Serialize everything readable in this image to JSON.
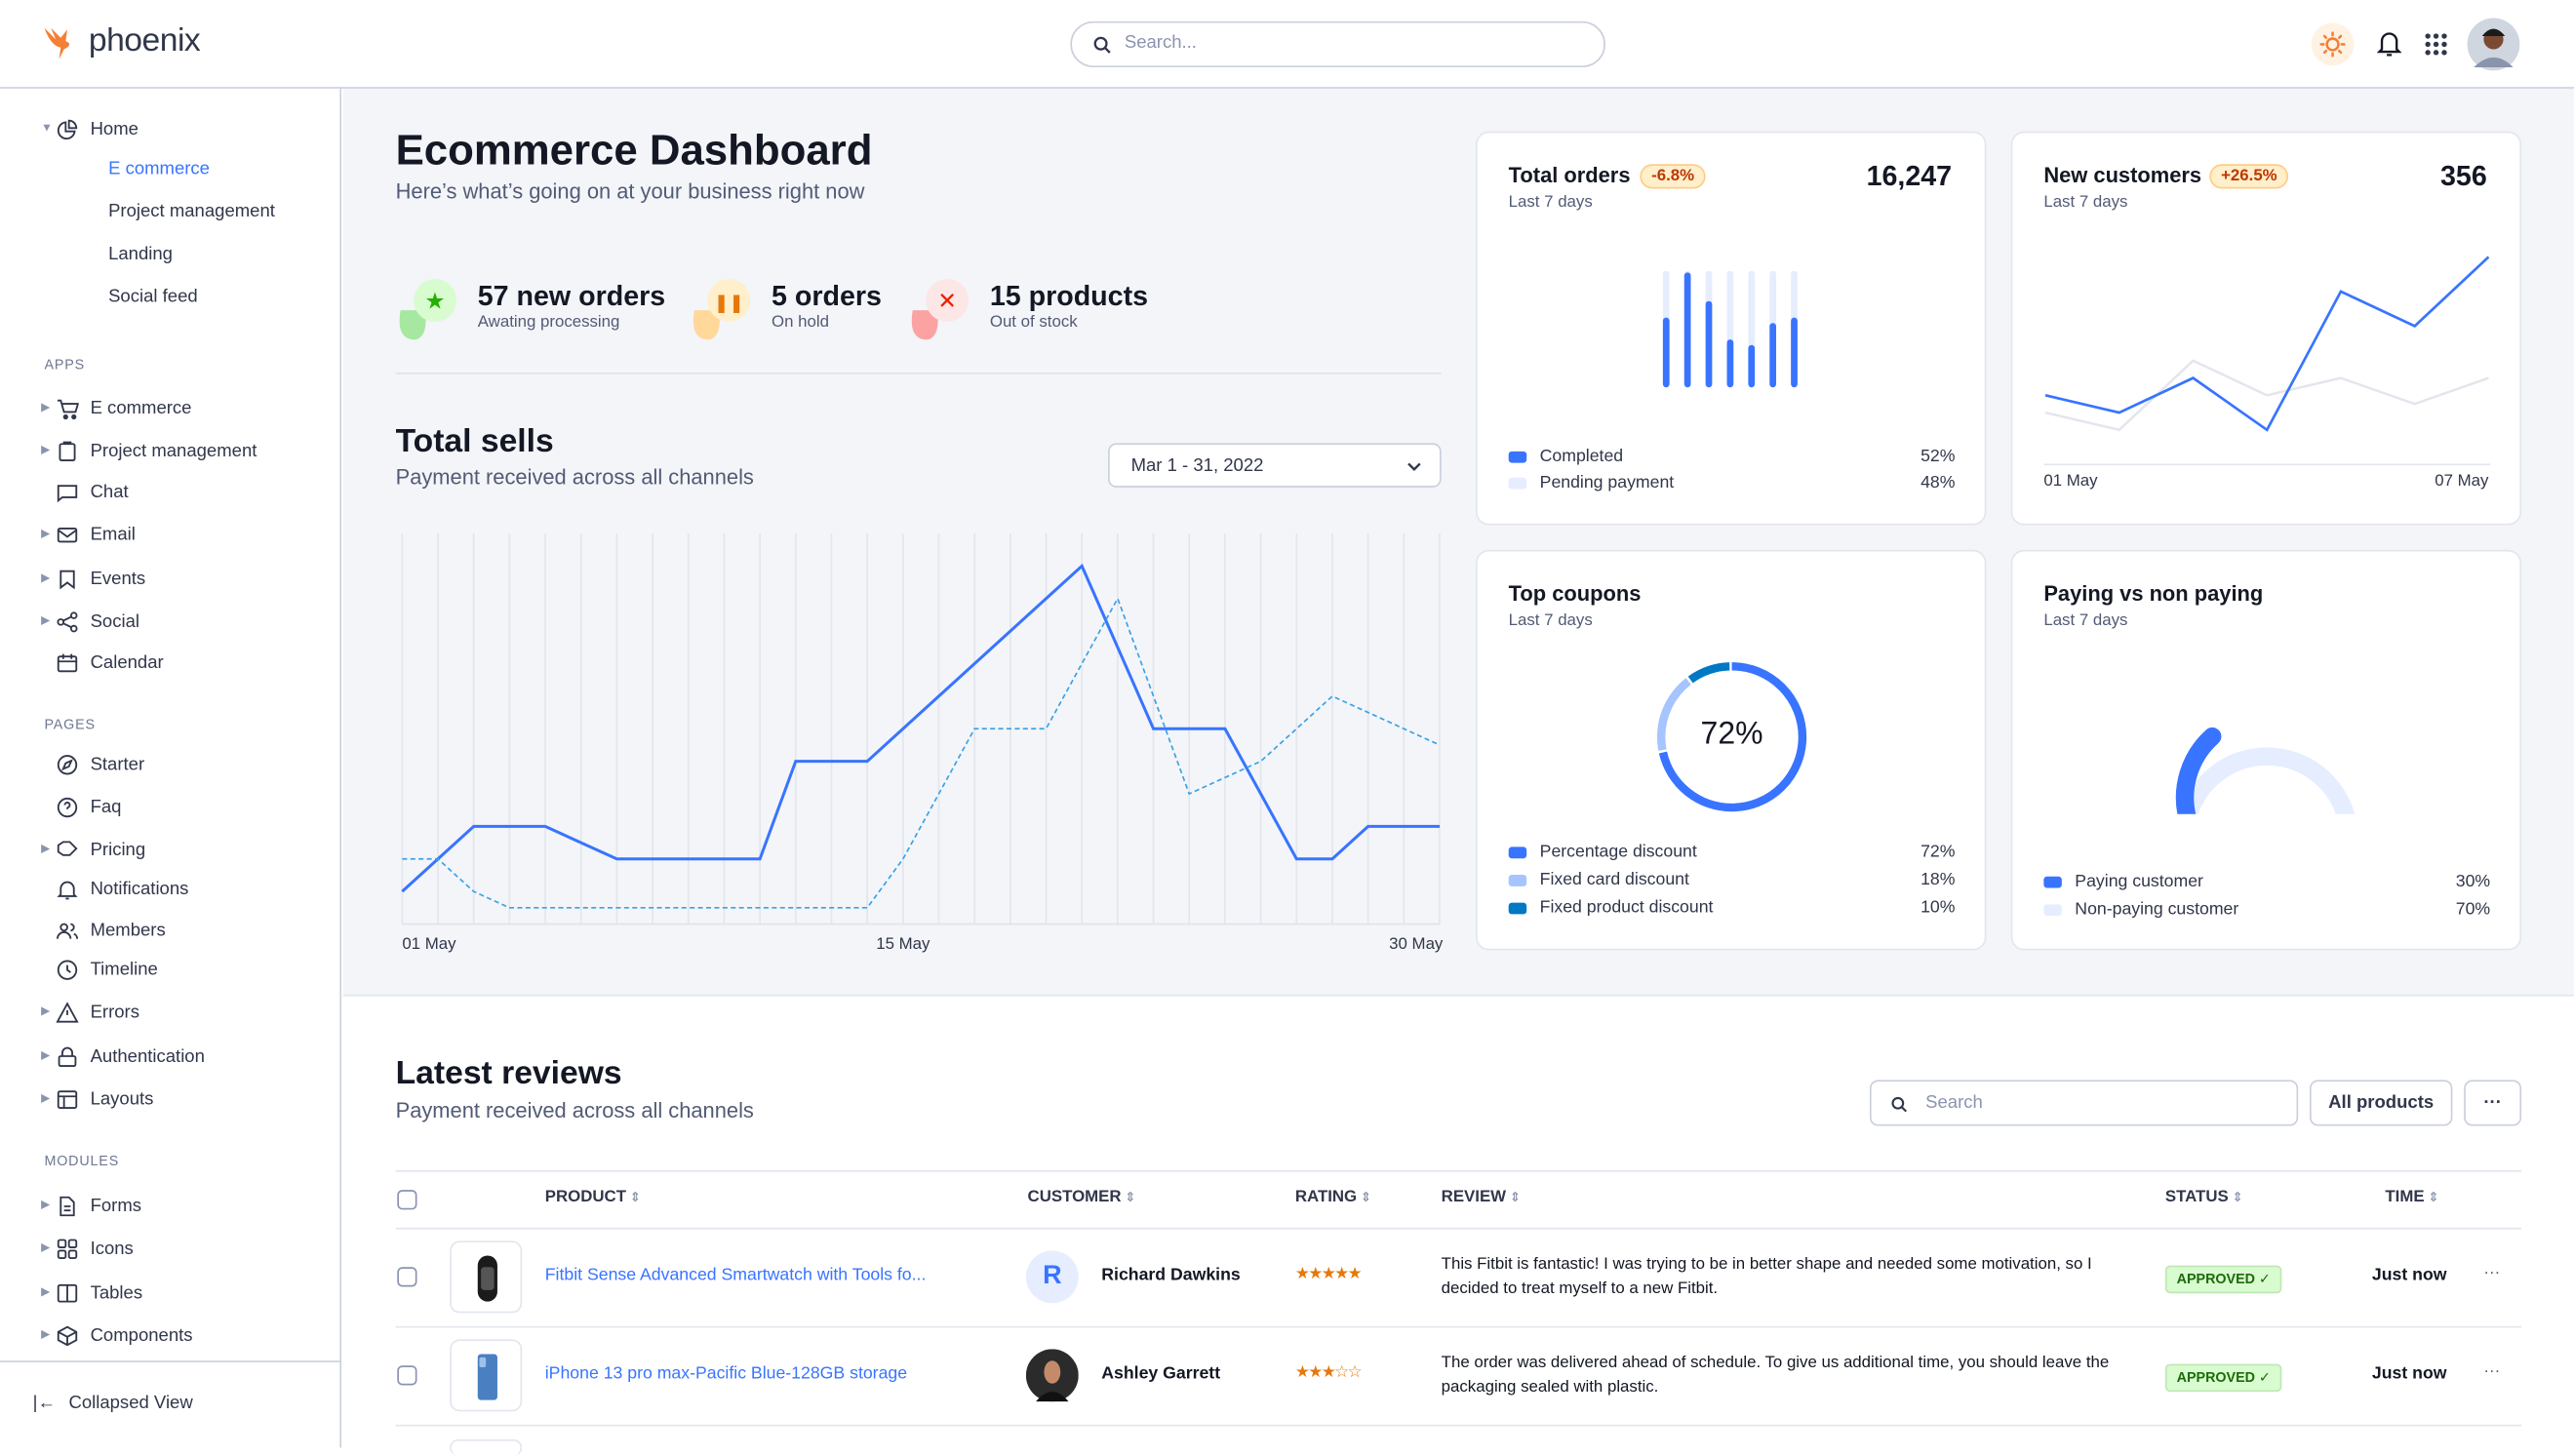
{
  "app": {
    "logo": "phoenix",
    "search_placeholder": "Search..."
  },
  "header_icons": [
    "sun-icon",
    "bell-icon",
    "apps-grid-icon",
    "avatar"
  ],
  "sidebar": {
    "home": {
      "label": "Home",
      "items": [
        "E commerce",
        "Project management",
        "Landing",
        "Social feed"
      ],
      "active": "E commerce"
    },
    "sections": [
      {
        "title": "APPS",
        "items": [
          {
            "label": "E commerce",
            "icon": "cart-icon",
            "caret": true
          },
          {
            "label": "Project management",
            "icon": "clipboard-icon",
            "caret": true
          },
          {
            "label": "Chat",
            "icon": "chat-icon",
            "caret": false
          },
          {
            "label": "Email",
            "icon": "mail-icon",
            "caret": true
          },
          {
            "label": "Events",
            "icon": "bookmark-icon",
            "caret": true
          },
          {
            "label": "Social",
            "icon": "share-icon",
            "caret": true
          },
          {
            "label": "Calendar",
            "icon": "calendar-icon",
            "caret": false
          }
        ]
      },
      {
        "title": "PAGES",
        "items": [
          {
            "label": "Starter",
            "icon": "compass-icon",
            "caret": false
          },
          {
            "label": "Faq",
            "icon": "help-circle-icon",
            "caret": false
          },
          {
            "label": "Pricing",
            "icon": "tag-icon",
            "caret": true
          },
          {
            "label": "Notifications",
            "icon": "bell-icon",
            "caret": false
          },
          {
            "label": "Members",
            "icon": "users-icon",
            "caret": false
          },
          {
            "label": "Timeline",
            "icon": "clock-icon",
            "caret": false
          },
          {
            "label": "Errors",
            "icon": "alert-triangle-icon",
            "caret": true
          },
          {
            "label": "Authentication",
            "icon": "lock-icon",
            "caret": true
          },
          {
            "label": "Layouts",
            "icon": "layout-icon",
            "caret": true
          }
        ]
      },
      {
        "title": "MODULES",
        "items": [
          {
            "label": "Forms",
            "icon": "file-text-icon",
            "caret": true
          },
          {
            "label": "Icons",
            "icon": "grid-icon",
            "caret": true
          },
          {
            "label": "Tables",
            "icon": "columns-icon",
            "caret": true
          },
          {
            "label": "Components",
            "icon": "package-icon",
            "caret": true
          }
        ]
      }
    ],
    "collapse_label": "Collapsed View"
  },
  "page": {
    "title": "Ecommerce Dashboard",
    "subtitle": "Here’s what’s going on at your business right now"
  },
  "stats": [
    {
      "value": "57 new orders",
      "label": "Awating processing",
      "icon": "star-icon",
      "color": "#25b003"
    },
    {
      "value": "5 orders",
      "label": "On hold",
      "icon": "pause-icon",
      "color": "#e5780b"
    },
    {
      "value": "15 products",
      "label": "Out of stock",
      "icon": "x-icon",
      "color": "#ec1f00"
    }
  ],
  "total_sells": {
    "title": "Total sells",
    "subtitle": "Payment received across all channels",
    "date_range": "Mar 1 - 31, 2022"
  },
  "chart_data": [
    {
      "type": "line",
      "title": "Total sells",
      "x_tick_labels": [
        "01 May",
        "15 May",
        "30 May"
      ],
      "x": [
        "01 May",
        "02 May",
        "03 May",
        "04 May",
        "05 May",
        "06 May",
        "07 May",
        "08 May",
        "09 May",
        "10 May",
        "11 May",
        "12 May",
        "13 May",
        "14 May",
        "15 May",
        "16 May",
        "17 May",
        "18 May",
        "19 May",
        "20 May",
        "21 May",
        "22 May",
        "23 May",
        "24 May",
        "25 May",
        "26 May",
        "27 May",
        "28 May",
        "29 May",
        "30 May"
      ],
      "ylim": [
        0,
        12
      ],
      "grid": "vertical",
      "series": [
        {
          "style": "solid",
          "color": "#3874ff",
          "values": [
            1,
            2,
            3,
            3,
            3,
            2.5,
            2,
            2,
            2,
            2,
            2,
            5,
            5,
            5,
            6,
            7,
            8,
            9,
            10,
            11,
            8.5,
            6,
            6,
            6,
            4,
            2,
            2,
            3,
            3,
            3
          ]
        },
        {
          "style": "dashed",
          "color": "#3ba2e6",
          "values": [
            2,
            2,
            1,
            0.5,
            0.5,
            0.5,
            0.5,
            0.5,
            0.5,
            0.5,
            0.5,
            0.5,
            0.5,
            0.5,
            2,
            4,
            6,
            6,
            6,
            8,
            10,
            7,
            4,
            4.5,
            5,
            6,
            7,
            6.5,
            6,
            5.5
          ]
        }
      ]
    },
    {
      "type": "bar",
      "title": "Total orders",
      "categories": [
        "1",
        "2",
        "3",
        "4",
        "5",
        "6",
        "7"
      ],
      "ylim": [
        0,
        100
      ],
      "series": [
        {
          "name": "Completed",
          "values": [
            59,
            100,
            74,
            39,
            34,
            54,
            59
          ]
        },
        {
          "name": "Pending payment",
          "values": [
            100,
            100,
            100,
            100,
            100,
            100,
            100
          ]
        }
      ]
    },
    {
      "type": "line",
      "title": "New customers",
      "x_tick_labels": [
        "01 May",
        "07 May"
      ],
      "ylim": [
        0,
        13
      ],
      "series": [
        {
          "color": "#3874ff",
          "values": [
            4,
            3,
            5,
            2,
            10,
            8,
            12
          ]
        },
        {
          "color": "#e3e6ed",
          "values": [
            3,
            2,
            6,
            4,
            5,
            3.5,
            5
          ]
        }
      ]
    },
    {
      "type": "pie",
      "title": "Top coupons",
      "center_label": "72%",
      "slices": [
        {
          "name": "Percentage discount",
          "value": 72,
          "color": "#3874ff"
        },
        {
          "name": "Fixed card discount",
          "value": 18,
          "color": "#a6c4ff"
        },
        {
          "name": "Fixed product discount",
          "value": 10,
          "color": "#0079c4"
        }
      ]
    },
    {
      "type": "pie",
      "title": "Paying vs non paying",
      "style": "gauge",
      "slices": [
        {
          "name": "Paying customer",
          "value": 30,
          "color": "#3874ff"
        },
        {
          "name": "Non-paying customer",
          "value": 70,
          "color": "#e5edff"
        }
      ]
    }
  ],
  "cards": {
    "orders": {
      "title": "Total orders",
      "badge": "-6.8%",
      "value": "16,247",
      "period": "Last 7 days",
      "legend": [
        {
          "label": "Completed",
          "pct": "52%",
          "color": "#3874ff"
        },
        {
          "label": "Pending payment",
          "pct": "48%",
          "color": "#e5edff"
        }
      ]
    },
    "customers": {
      "title": "New customers",
      "badge": "+26.5%",
      "value": "356",
      "period": "Last 7 days",
      "x_start": "01 May",
      "x_end": "07 May"
    },
    "coupons": {
      "title": "Top coupons",
      "period": "Last 7 days",
      "center": "72%",
      "legend": [
        {
          "label": "Percentage discount",
          "pct": "72%",
          "color": "#3874ff"
        },
        {
          "label": "Fixed card discount",
          "pct": "18%",
          "color": "#a6c4ff"
        },
        {
          "label": "Fixed product discount",
          "pct": "10%",
          "color": "#0079c4"
        }
      ]
    },
    "paying": {
      "title": "Paying vs non paying",
      "period": "Last 7 days",
      "legend": [
        {
          "label": "Paying customer",
          "pct": "30%",
          "color": "#3874ff"
        },
        {
          "label": "Non-paying customer",
          "pct": "70%",
          "color": "#e5edff"
        }
      ]
    }
  },
  "reviews": {
    "title": "Latest reviews",
    "subtitle": "Payment received across all channels",
    "search_placeholder": "Search",
    "filter_label": "All products",
    "more_label": "···",
    "columns": [
      "PRODUCT",
      "CUSTOMER",
      "RATING",
      "REVIEW",
      "STATUS",
      "TIME"
    ],
    "rows": [
      {
        "product": "Fitbit Sense Advanced Smartwatch with Tools fo...",
        "customer": "Richard Dawkins",
        "initial": "R",
        "rating": 5,
        "stars": "★★★★★",
        "review": "This Fitbit is fantastic! I was trying to be in better shape and needed some motivation, so I decided to treat myself to a new Fitbit.",
        "status": "APPROVED ✓",
        "time": "Just now"
      },
      {
        "product": "iPhone 13 pro max-Pacific Blue-128GB storage",
        "customer": "Ashley Garrett",
        "rating": 3,
        "stars": "★★★☆☆",
        "review": "The order was delivered ahead of schedule. To give us additional time, you should leave the packaging sealed with plastic.",
        "status": "APPROVED ✓",
        "time": "Just now"
      }
    ]
  }
}
